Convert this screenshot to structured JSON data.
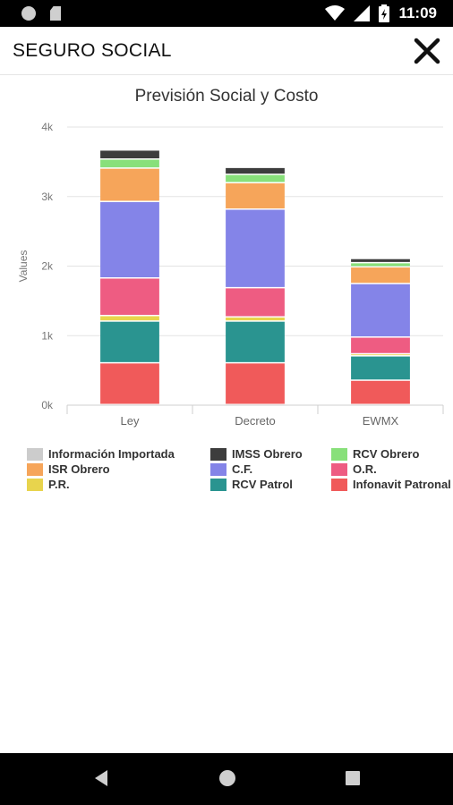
{
  "status_bar": {
    "time": "11:09",
    "icons": [
      "notification-dot-icon",
      "sim-card-icon",
      "wifi-icon",
      "signal-icon",
      "battery-charging-icon"
    ]
  },
  "app_bar": {
    "title": "SEGURO SOCIAL",
    "close_icon": "close-icon"
  },
  "nav_bar": {
    "icons": [
      "back-icon",
      "home-icon",
      "recents-icon"
    ]
  },
  "chart_data": {
    "type": "bar",
    "stacked": true,
    "title": "Previsión Social y Costo",
    "ylabel": "Values",
    "xlabel": "",
    "categories": [
      "Ley",
      "Decreto",
      "EWMX"
    ],
    "y_ticks": [
      "0k",
      "1k",
      "2k",
      "3k",
      "4k"
    ],
    "ylim": [
      0,
      4000
    ],
    "grid": true,
    "legend_position": "bottom",
    "series": [
      {
        "name": "Infonavit Patronal",
        "color": "#f05a5a",
        "values": [
          600,
          600,
          350
        ]
      },
      {
        "name": "RCV Patrol",
        "color": "#2a9490",
        "values": [
          600,
          600,
          350
        ]
      },
      {
        "name": "P.R.",
        "color": "#e8d44d",
        "values": [
          80,
          60,
          30
        ]
      },
      {
        "name": "O.R.",
        "color": "#ee5c82",
        "values": [
          540,
          420,
          240
        ]
      },
      {
        "name": "C.F.",
        "color": "#8484e8",
        "values": [
          1100,
          1130,
          770
        ]
      },
      {
        "name": "ISR Obrero",
        "color": "#f6a55a",
        "values": [
          480,
          380,
          240
        ]
      },
      {
        "name": "RCV Obrero",
        "color": "#88e07a",
        "values": [
          130,
          120,
          60
        ]
      },
      {
        "name": "IMSS Obrero",
        "color": "#3d3d3d",
        "values": [
          130,
          100,
          60
        ]
      },
      {
        "name": "Información Importada",
        "color": "#cccccc",
        "values": [
          0,
          0,
          0
        ]
      }
    ],
    "legend_order": [
      "Información Importada",
      "IMSS Obrero",
      "RCV Obrero",
      "ISR Obrero",
      "C.F.",
      "O.R.",
      "P.R.",
      "RCV Patrol",
      "Infonavit Patronal"
    ]
  }
}
